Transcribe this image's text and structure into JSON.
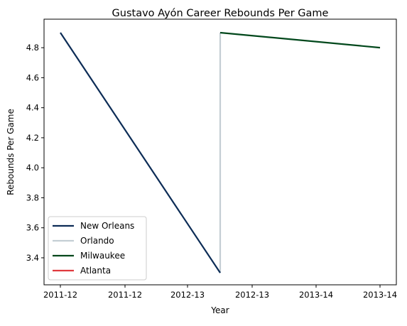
{
  "chart_data": {
    "type": "line",
    "title": "Gustavo Ayón Career Rebounds Per Game",
    "xlabel": "Year",
    "ylabel": "Rebounds Per Game",
    "x_tick_labels": [
      "2011-12",
      "2011-12",
      "2012-13",
      "2012-13",
      "2013-14",
      "2013-14"
    ],
    "y_ticks": [
      "3.4",
      "3.6",
      "3.8",
      "4.0",
      "4.2",
      "4.4",
      "4.6",
      "4.8"
    ],
    "ylim": [
      3.22,
      4.99
    ],
    "grid": false,
    "legend_position": "lower-left",
    "series": [
      {
        "name": "New Orleans",
        "color": "#0c2c56",
        "x": [
          "2011-12",
          "2012-13"
        ],
        "y": [
          4.9,
          3.3
        ]
      },
      {
        "name": "Orlando",
        "color": "#c4ced4",
        "x": [
          "2012-13",
          "2012-13"
        ],
        "y": [
          3.3,
          4.9
        ]
      },
      {
        "name": "Milwaukee",
        "color": "#00471b",
        "x": [
          "2012-13",
          "2013-14"
        ],
        "y": [
          4.9,
          4.8
        ]
      },
      {
        "name": "Atlanta",
        "color": "#e03a3e",
        "x": [],
        "y": []
      }
    ]
  }
}
